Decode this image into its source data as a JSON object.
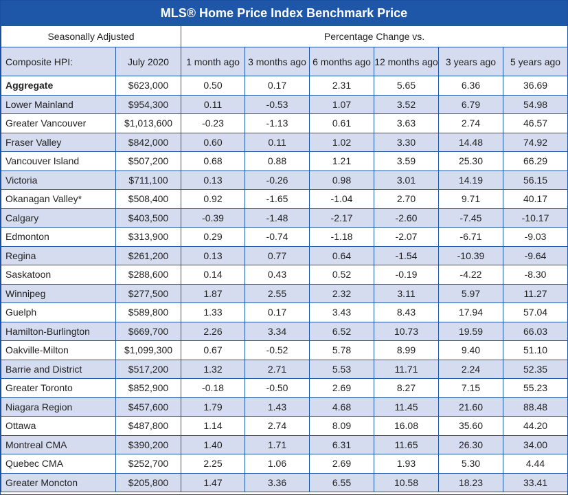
{
  "title": "MLS® Home Price Index Benchmark Price",
  "group_headers": {
    "left": "Seasonally Adjusted",
    "right": "Percentage Change vs."
  },
  "columns": [
    "Composite HPI:",
    "July 2020",
    "1 month ago",
    "3 months ago",
    "6 months ago",
    "12 months ago",
    "3 years ago",
    "5 years ago"
  ],
  "chart_data": {
    "type": "table",
    "title": "MLS® Home Price Index Benchmark Price",
    "columns": [
      "Composite HPI:",
      "July 2020",
      "1 month ago",
      "3 months ago",
      "6 months ago",
      "12 months ago",
      "3 years ago",
      "5 years ago"
    ],
    "rows": [
      [
        "Aggregate",
        "$623,000",
        "0.50",
        "0.17",
        "2.31",
        "5.65",
        "6.36",
        "36.69"
      ],
      [
        "Lower Mainland",
        "$954,300",
        "0.11",
        "-0.53",
        "1.07",
        "3.52",
        "6.79",
        "54.98"
      ],
      [
        "Greater Vancouver",
        "$1,013,600",
        "-0.23",
        "-1.13",
        "0.61",
        "3.63",
        "2.74",
        "46.57"
      ],
      [
        "Fraser Valley",
        "$842,000",
        "0.60",
        "0.11",
        "1.02",
        "3.30",
        "14.48",
        "74.92"
      ],
      [
        "Vancouver Island",
        "$507,200",
        "0.68",
        "0.88",
        "1.21",
        "3.59",
        "25.30",
        "66.29"
      ],
      [
        "Victoria",
        "$711,100",
        "0.13",
        "-0.26",
        "0.98",
        "3.01",
        "14.19",
        "56.15"
      ],
      [
        "Okanagan Valley*",
        "$508,400",
        "0.92",
        "-1.65",
        "-1.04",
        "2.70",
        "9.71",
        "40.17"
      ],
      [
        "Calgary",
        "$403,500",
        "-0.39",
        "-1.48",
        "-2.17",
        "-2.60",
        "-7.45",
        "-10.17"
      ],
      [
        "Edmonton",
        "$313,900",
        "0.29",
        "-0.74",
        "-1.18",
        "-2.07",
        "-6.71",
        "-9.03"
      ],
      [
        "Regina",
        "$261,200",
        "0.13",
        "0.77",
        "0.64",
        "-1.54",
        "-10.39",
        "-9.64"
      ],
      [
        "Saskatoon",
        "$288,600",
        "0.14",
        "0.43",
        "0.52",
        "-0.19",
        "-4.22",
        "-8.30"
      ],
      [
        "Winnipeg",
        "$277,500",
        "1.87",
        "2.55",
        "2.32",
        "3.11",
        "5.97",
        "11.27"
      ],
      [
        "Guelph",
        "$589,800",
        "1.33",
        "0.17",
        "3.43",
        "8.43",
        "17.94",
        "57.04"
      ],
      [
        "Hamilton-Burlington",
        "$669,700",
        "2.26",
        "3.34",
        "6.52",
        "10.73",
        "19.59",
        "66.03"
      ],
      [
        "Oakville-Milton",
        "$1,099,300",
        "0.67",
        "-0.52",
        "5.78",
        "8.99",
        "9.40",
        "51.10"
      ],
      [
        "Barrie and District",
        "$517,200",
        "1.32",
        "2.71",
        "5.53",
        "11.71",
        "2.24",
        "52.35"
      ],
      [
        "Greater Toronto",
        "$852,900",
        "-0.18",
        "-0.50",
        "2.69",
        "8.27",
        "7.15",
        "55.23"
      ],
      [
        "Niagara Region",
        "$457,600",
        "1.79",
        "1.43",
        "4.68",
        "11.45",
        "21.60",
        "88.48"
      ],
      [
        "Ottawa",
        "$487,800",
        "1.14",
        "2.74",
        "8.09",
        "16.08",
        "35.60",
        "44.20"
      ],
      [
        "Montreal CMA",
        "$390,200",
        "1.40",
        "1.71",
        "6.31",
        "11.65",
        "26.30",
        "34.00"
      ],
      [
        "Quebec CMA",
        "$252,700",
        "2.25",
        "1.06",
        "2.69",
        "1.93",
        "5.30",
        "4.44"
      ],
      [
        "Greater Moncton",
        "$205,800",
        "1.47",
        "3.36",
        "6.55",
        "10.58",
        "18.23",
        "33.41"
      ]
    ],
    "bold_rows": [
      "Aggregate"
    ],
    "colors": {
      "header_blue": "#1f57a8",
      "stripe": "#d5dcef"
    }
  }
}
